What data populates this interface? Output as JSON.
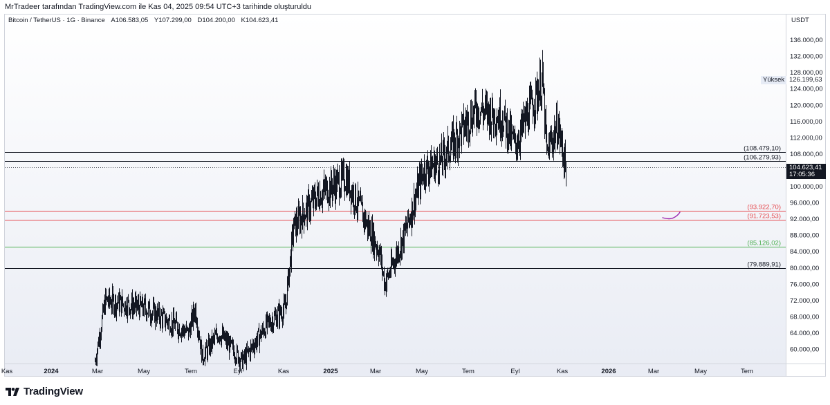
{
  "header": {
    "attribution": "MrTradeer tarafından TradingView.com ile Kas 04, 2025 09:54 UTC+3 tarihinde oluşturuldu"
  },
  "legend": {
    "symbol": "Bitcoin / TetherUS · 1G · Binance",
    "open_label": "A",
    "open": "106.583,05",
    "high_label": "Y",
    "high": "107.299,00",
    "low_label": "D",
    "low": "104.200,00",
    "close_label": "K",
    "close": "104.623,41"
  },
  "price_axis": {
    "currency": "USDT",
    "ticks": [
      "136.000,00",
      "132.000,00",
      "128.000,00",
      "124.000,00",
      "120.000,00",
      "116.000,00",
      "112.000,00",
      "108.000,00",
      "100.000,00",
      "96.000,00",
      "92.000,00",
      "88.000,00",
      "84.000,00",
      "80.000,00",
      "76.000,00",
      "72.000,00",
      "68.000,00",
      "64.000,00",
      "60.000,00"
    ],
    "tick_values": [
      136000,
      132000,
      128000,
      124000,
      120000,
      116000,
      112000,
      108000,
      100000,
      96000,
      92000,
      88000,
      84000,
      80000,
      76000,
      72000,
      68000,
      64000,
      60000
    ]
  },
  "high_marker": {
    "label": "Yüksek",
    "price": "126.199,63"
  },
  "last_price": {
    "price": "104.623,41",
    "countdown": "17:05:36",
    "value": 104623.41
  },
  "levels": [
    {
      "text": "(108.479,10)",
      "value": 108479.1,
      "color": "#131722"
    },
    {
      "text": "(106.279,93)",
      "value": 106279.93,
      "color": "#131722"
    },
    {
      "text": "(93.922,70)",
      "value": 93922.7,
      "color": "#e5484d"
    },
    {
      "text": "(91.723,53)",
      "value": 91723.53,
      "color": "#e5484d"
    },
    {
      "text": "(85.126,02)",
      "value": 85126.02,
      "color": "#4caf50"
    },
    {
      "text": "(79.889,91)",
      "value": 79889.91,
      "color": "#131722"
    }
  ],
  "time_axis": {
    "labels": [
      {
        "text": "Kas",
        "bold": false
      },
      {
        "text": "2024",
        "bold": true
      },
      {
        "text": "Mar",
        "bold": false
      },
      {
        "text": "May",
        "bold": false
      },
      {
        "text": "Tem",
        "bold": false
      },
      {
        "text": "Eyl",
        "bold": false
      },
      {
        "text": "Kas",
        "bold": false
      },
      {
        "text": "2025",
        "bold": true
      },
      {
        "text": "Mar",
        "bold": false
      },
      {
        "text": "May",
        "bold": false
      },
      {
        "text": "Tem",
        "bold": false
      },
      {
        "text": "Eyl",
        "bold": false
      },
      {
        "text": "Kas",
        "bold": false
      },
      {
        "text": "2026",
        "bold": true
      },
      {
        "text": "Mar",
        "bold": false
      },
      {
        "text": "May",
        "bold": false
      },
      {
        "text": "Tem",
        "bold": false
      }
    ]
  },
  "chart_data": {
    "type": "line",
    "ylim": [
      56000,
      140000
    ],
    "x": [
      "2024-03",
      "2024-03",
      "2024-04",
      "2024-05",
      "2024-06",
      "2024-07",
      "2024-08",
      "2024-09",
      "2024-10",
      "2024-11",
      "2024-11",
      "2024-12",
      "2025-01",
      "2025-02",
      "2025-03",
      "2025-04",
      "2025-04",
      "2025-05",
      "2025-06",
      "2025-07",
      "2025-08",
      "2025-09",
      "2025-10",
      "2025-10",
      "2025-10",
      "2025-11"
    ],
    "series": [
      {
        "values": [
          57000,
          72000,
          70000,
          64000,
          70000,
          58000,
          64000,
          57000,
          66000,
          70000,
          90000,
          98000,
          102000,
          93000,
          84000,
          76000,
          88000,
          104000,
          106000,
          119000,
          117000,
          110000,
          126000,
          108000,
          115000,
          104600
        ]
      }
    ]
  },
  "annotation": {
    "color": "#9c27b0"
  },
  "brand": {
    "name": "TradingView"
  },
  "colors": {
    "axis_text": "#131722",
    "candle": "#131722"
  }
}
